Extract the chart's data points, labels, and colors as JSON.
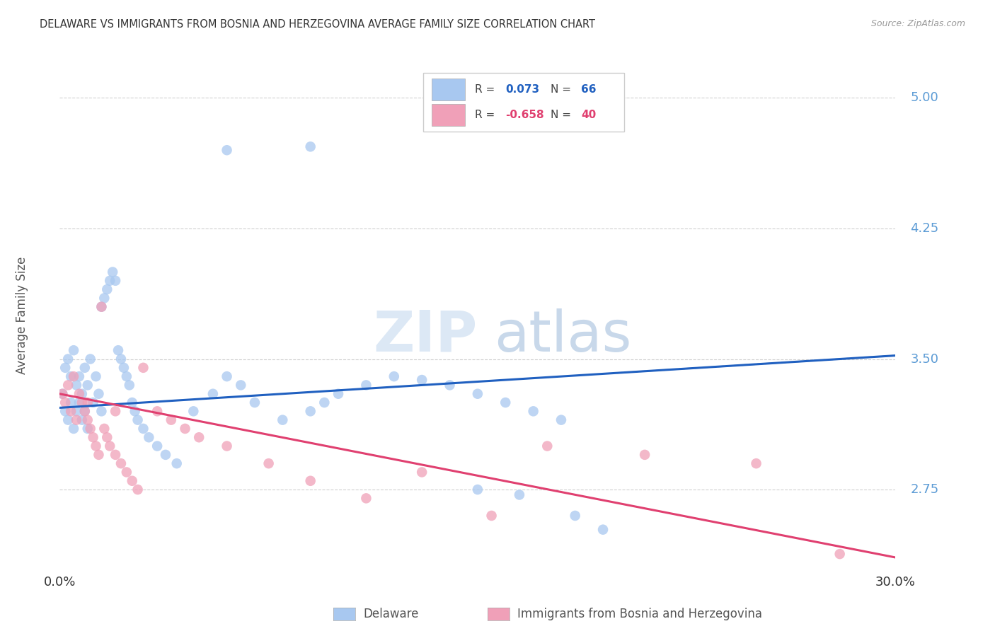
{
  "title": "DELAWARE VS IMMIGRANTS FROM BOSNIA AND HERZEGOVINA AVERAGE FAMILY SIZE CORRELATION CHART",
  "source": "Source: ZipAtlas.com",
  "ylabel": "Average Family Size",
  "xlim": [
    0.0,
    0.3
  ],
  "ylim": [
    2.3,
    5.2
  ],
  "yticks": [
    2.75,
    3.5,
    4.25,
    5.0
  ],
  "background_color": "#ffffff",
  "grid_color": "#d0d0d0",
  "blue_color": "#a8c8f0",
  "pink_color": "#f0a0b8",
  "blue_line_color": "#2060c0",
  "pink_line_color": "#e04070",
  "legend_r_blue": "0.073",
  "legend_n_blue": "66",
  "legend_r_pink": "-0.658",
  "legend_n_pink": "40",
  "blue_line_x0": 0.0,
  "blue_line_y0": 3.22,
  "blue_line_x1": 0.3,
  "blue_line_y1": 3.52,
  "pink_line_x0": 0.0,
  "pink_line_y0": 3.3,
  "pink_line_x1": 0.3,
  "pink_line_y1": 2.36,
  "blue_scatter_x": [
    0.001,
    0.002,
    0.002,
    0.003,
    0.003,
    0.004,
    0.004,
    0.005,
    0.005,
    0.006,
    0.006,
    0.007,
    0.007,
    0.008,
    0.008,
    0.009,
    0.009,
    0.01,
    0.01,
    0.011,
    0.012,
    0.013,
    0.014,
    0.015,
    0.015,
    0.016,
    0.017,
    0.018,
    0.019,
    0.02,
    0.021,
    0.022,
    0.023,
    0.024,
    0.025,
    0.026,
    0.027,
    0.028,
    0.03,
    0.032,
    0.035,
    0.038,
    0.042,
    0.048,
    0.055,
    0.06,
    0.065,
    0.07,
    0.08,
    0.09,
    0.095,
    0.1,
    0.11,
    0.12,
    0.13,
    0.14,
    0.15,
    0.16,
    0.17,
    0.18,
    0.06,
    0.09,
    0.15,
    0.165,
    0.185,
    0.195
  ],
  "blue_scatter_y": [
    3.3,
    3.45,
    3.2,
    3.5,
    3.15,
    3.4,
    3.25,
    3.55,
    3.1,
    3.35,
    3.2,
    3.4,
    3.25,
    3.3,
    3.15,
    3.45,
    3.2,
    3.35,
    3.1,
    3.5,
    3.25,
    3.4,
    3.3,
    3.2,
    3.8,
    3.85,
    3.9,
    3.95,
    4.0,
    3.95,
    3.55,
    3.5,
    3.45,
    3.4,
    3.35,
    3.25,
    3.2,
    3.15,
    3.1,
    3.05,
    3.0,
    2.95,
    2.9,
    3.2,
    3.3,
    3.4,
    3.35,
    3.25,
    3.15,
    3.2,
    3.25,
    3.3,
    3.35,
    3.4,
    3.38,
    3.35,
    3.3,
    3.25,
    3.2,
    3.15,
    4.7,
    4.72,
    2.75,
    2.72,
    2.6,
    2.52
  ],
  "pink_scatter_x": [
    0.001,
    0.002,
    0.003,
    0.004,
    0.005,
    0.006,
    0.007,
    0.008,
    0.009,
    0.01,
    0.011,
    0.012,
    0.013,
    0.014,
    0.015,
    0.016,
    0.017,
    0.018,
    0.02,
    0.022,
    0.024,
    0.026,
    0.028,
    0.03,
    0.035,
    0.04,
    0.045,
    0.05,
    0.06,
    0.075,
    0.09,
    0.11,
    0.13,
    0.155,
    0.175,
    0.21,
    0.25,
    0.28,
    0.01,
    0.02
  ],
  "pink_scatter_y": [
    3.3,
    3.25,
    3.35,
    3.2,
    3.4,
    3.15,
    3.3,
    3.25,
    3.2,
    3.15,
    3.1,
    3.05,
    3.0,
    2.95,
    3.8,
    3.1,
    3.05,
    3.0,
    2.95,
    2.9,
    2.85,
    2.8,
    2.75,
    3.45,
    3.2,
    3.15,
    3.1,
    3.05,
    3.0,
    2.9,
    2.8,
    2.7,
    2.85,
    2.6,
    3.0,
    2.95,
    2.9,
    2.38,
    3.25,
    3.2
  ]
}
